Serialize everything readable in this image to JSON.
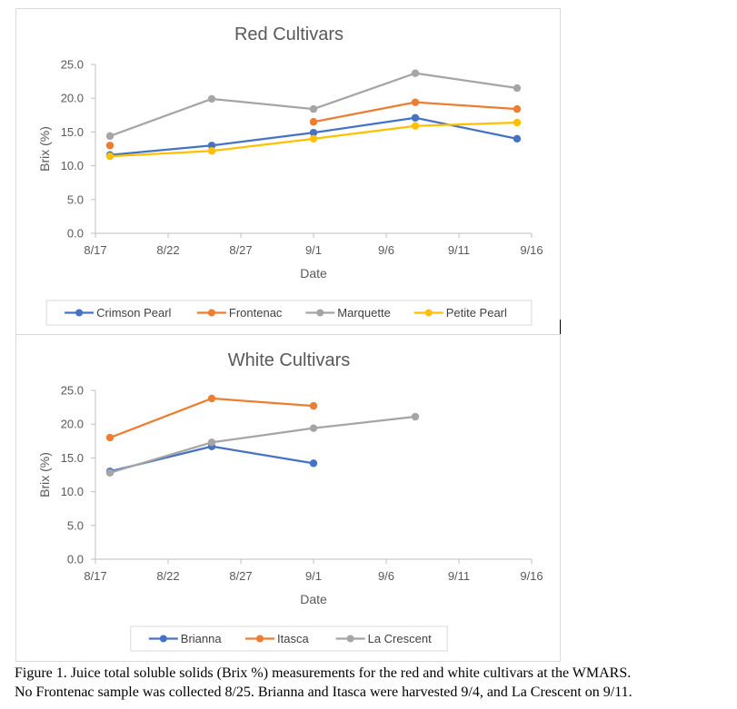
{
  "chart_data": [
    {
      "type": "line",
      "title": "Red Cultivars",
      "xlabel": "Date",
      "ylabel": "Brix (%)",
      "ylim": [
        0,
        25
      ],
      "yticks": [
        "0.0",
        "5.0",
        "10.0",
        "15.0",
        "20.0",
        "25.0"
      ],
      "ytick_values": [
        0,
        5,
        10,
        15,
        20,
        25
      ],
      "xlim_days": [
        0,
        30
      ],
      "xticks": [
        "8/17",
        "8/22",
        "8/27",
        "9/1",
        "9/6",
        "9/11",
        "9/16"
      ],
      "xtick_days": [
        0,
        5,
        10,
        15,
        20,
        25,
        30
      ],
      "x_dates": [
        "8/18",
        "8/25",
        "9/1",
        "9/8",
        "9/15"
      ],
      "x_days": [
        1,
        8,
        15,
        22,
        29
      ],
      "grid": false,
      "legend_position": "bottom",
      "series": [
        {
          "name": "Crimson Pearl",
          "color": "#4472C4",
          "values": [
            11.6,
            13.0,
            14.9,
            17.1,
            14.0
          ]
        },
        {
          "name": "Frontenac",
          "color": "#ED7D31",
          "values": [
            13.0,
            null,
            16.5,
            19.4,
            18.4
          ]
        },
        {
          "name": "Marquette",
          "color": "#A5A5A5",
          "values": [
            14.4,
            19.9,
            18.4,
            23.7,
            21.5
          ]
        },
        {
          "name": "Petite Pearl",
          "color": "#FFC000",
          "values": [
            11.4,
            12.2,
            14.0,
            15.9,
            16.4
          ]
        }
      ]
    },
    {
      "type": "line",
      "title": "White Cultivars",
      "xlabel": "Date",
      "ylabel": "Brix (%)",
      "ylim": [
        0,
        25
      ],
      "yticks": [
        "0.0",
        "5.0",
        "10.0",
        "15.0",
        "20.0",
        "25.0"
      ],
      "ytick_values": [
        0,
        5,
        10,
        15,
        20,
        25
      ],
      "xlim_days": [
        0,
        30
      ],
      "xticks": [
        "8/17",
        "8/22",
        "8/27",
        "9/1",
        "9/6",
        "9/11",
        "9/16"
      ],
      "xtick_days": [
        0,
        5,
        10,
        15,
        20,
        25,
        30
      ],
      "x_dates": [
        "8/18",
        "8/25",
        "9/1",
        "9/8"
      ],
      "x_days": [
        1,
        8,
        15,
        22
      ],
      "grid": false,
      "legend_position": "bottom",
      "series": [
        {
          "name": "Brianna",
          "color": "#4472C4",
          "values": [
            13.0,
            16.7,
            14.2,
            null
          ]
        },
        {
          "name": "Itasca",
          "color": "#ED7D31",
          "values": [
            18.0,
            23.8,
            22.7,
            null
          ]
        },
        {
          "name": "La Crescent",
          "color": "#A5A5A5",
          "values": [
            12.8,
            17.3,
            19.4,
            21.1
          ]
        }
      ]
    }
  ],
  "caption": {
    "line1": "Figure 1. Juice total soluble solids (Brix %) measurements for the red and white cultivars at the WMARS.",
    "line2": "No Frontenac sample was collected 8/25. Brianna and Itasca were harvested 9/4, and La Crescent on 9/11."
  }
}
